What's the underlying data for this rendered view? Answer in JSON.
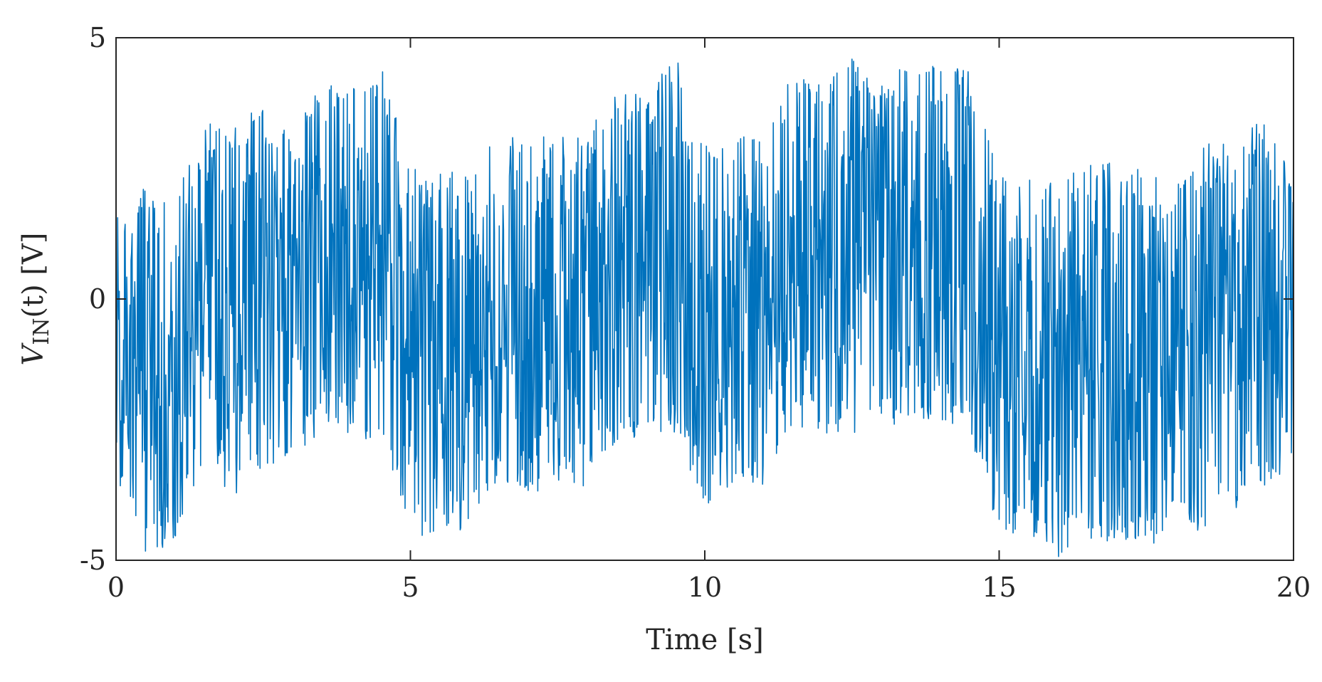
{
  "chart_data": {
    "type": "line",
    "title": "",
    "xlabel": "Time [s]",
    "ylabel": {
      "main": "V",
      "sub": "IN",
      "rest": "(t) [V]"
    },
    "xlim": [
      0,
      20
    ],
    "ylim": [
      -5,
      5
    ],
    "x_ticks": [
      0,
      5,
      10,
      15,
      20
    ],
    "y_ticks": [
      -5,
      0,
      5
    ],
    "x_tick_labels": [
      "0",
      "5",
      "10",
      "15",
      "20"
    ],
    "y_tick_labels": [
      "-5",
      "0",
      "5"
    ],
    "grid": false,
    "legend": "none",
    "series": [
      {
        "color": "#0072BD",
        "envelope": {
          "x": [
            0,
            0.5,
            1.0,
            1.5,
            2.0,
            2.5,
            3.0,
            3.5,
            4.0,
            4.5,
            5.0,
            5.5,
            6.0,
            6.5,
            7.0,
            7.5,
            8.0,
            8.5,
            9.0,
            9.5,
            10.0,
            10.5,
            11.0,
            11.5,
            12.0,
            12.5,
            13.0,
            13.5,
            14.0,
            14.5,
            15.0,
            15.5,
            16.0,
            16.5,
            17.0,
            17.5,
            18.0,
            18.5,
            19.0,
            19.5,
            20.0
          ],
          "max": [
            1.6,
            2.2,
            2.0,
            3.5,
            3.4,
            3.7,
            3.3,
            4.2,
            4.1,
            4.5,
            2.6,
            2.6,
            2.3,
            3.3,
            3.0,
            3.2,
            3.2,
            4.1,
            4.0,
            4.8,
            3.1,
            3.2,
            3.0,
            4.5,
            4.2,
            4.6,
            4.3,
            4.6,
            4.5,
            4.4,
            2.4,
            2.3,
            2.2,
            2.7,
            2.6,
            2.5,
            2.3,
            3.0,
            3.0,
            3.6,
            2.3
          ],
          "min": [
            -3.5,
            -5.0,
            -4.6,
            -3.0,
            -3.9,
            -3.5,
            -3.3,
            -2.5,
            -2.8,
            -2.6,
            -4.6,
            -4.5,
            -4.6,
            -3.5,
            -3.8,
            -3.5,
            -3.6,
            -2.8,
            -2.7,
            -2.6,
            -4.0,
            -3.5,
            -3.7,
            -2.5,
            -2.6,
            -2.6,
            -2.4,
            -2.4,
            -2.3,
            -2.6,
            -4.5,
            -4.6,
            -5.0,
            -4.7,
            -4.7,
            -4.7,
            -4.6,
            -4.4,
            -4.1,
            -3.9,
            -3.0
          ]
        }
      }
    ]
  }
}
